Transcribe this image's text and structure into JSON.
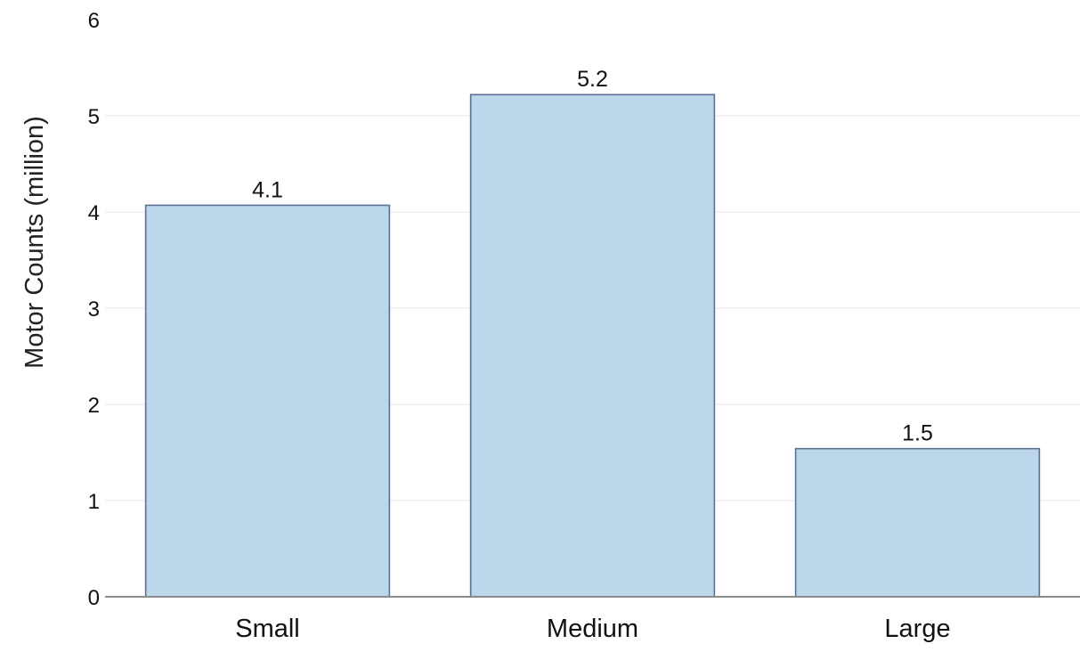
{
  "chart_data": {
    "type": "bar",
    "title": "",
    "xlabel": "",
    "ylabel": "Motor Counts (million)",
    "categories": [
      "Small",
      "Medium",
      "Large"
    ],
    "values": [
      4.07,
      5.22,
      1.54
    ],
    "data_labels": [
      "4.1",
      "5.2",
      "1.5"
    ],
    "ylim": [
      0,
      6
    ],
    "yticks": [
      "0",
      "1",
      "2",
      "3",
      "4",
      "5",
      "6"
    ],
    "grid": true,
    "legend": "none",
    "colors": {
      "bar_fill": "#bcd7ea",
      "bar_stroke": "#5b6e94"
    }
  }
}
